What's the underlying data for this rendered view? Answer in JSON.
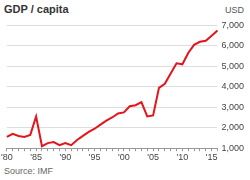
{
  "chart_data": {
    "type": "line",
    "title": "GDP / capita",
    "y_label": "USD",
    "source": "Source: IMF",
    "categories": [
      "'80",
      null,
      null,
      null,
      null,
      "'85",
      null,
      null,
      null,
      null,
      "'90",
      null,
      null,
      null,
      null,
      "'95",
      null,
      null,
      null,
      null,
      "'00",
      null,
      null,
      null,
      null,
      "'05",
      null,
      null,
      null,
      null,
      "'10",
      null,
      null,
      null,
      null,
      "'15",
      null
    ],
    "values": [
      1550,
      1700,
      1600,
      1550,
      1650,
      2550,
      1100,
      1250,
      1300,
      1150,
      1250,
      1150,
      1400,
      1600,
      1800,
      1950,
      2150,
      2350,
      2500,
      2700,
      2750,
      3050,
      3100,
      3250,
      2550,
      2600,
      3950,
      4150,
      4650,
      5150,
      5100,
      5650,
      6050,
      6200,
      6250,
      6500,
      6750
    ],
    "color": "#e3141b",
    "ylim": [
      1000,
      7000
    ],
    "yticks": [
      {
        "value": 1000,
        "label": "1,000"
      },
      {
        "value": 2000,
        "label": "2,000"
      },
      {
        "value": 3000,
        "label": "3,000"
      },
      {
        "value": 4000,
        "label": "4,000"
      },
      {
        "value": 5000,
        "label": "5,000"
      },
      {
        "value": 6000,
        "label": "6,000"
      },
      {
        "value": 7000,
        "label": "7,000"
      }
    ],
    "grid": true
  }
}
